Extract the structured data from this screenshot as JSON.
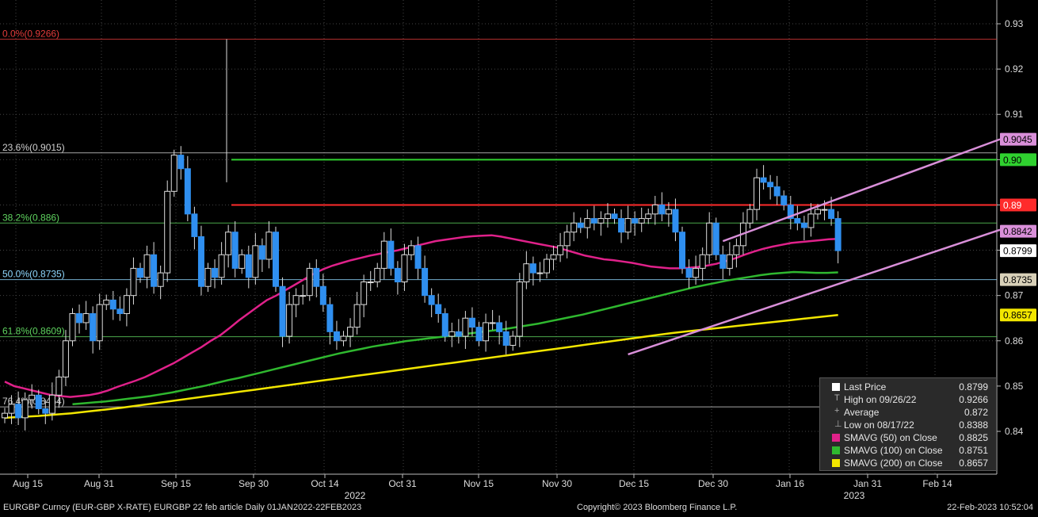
{
  "chart_data": {
    "type": "candlestick",
    "title": "",
    "y_range": [
      0.835,
      0.935
    ],
    "y_ticks": [
      "0.93",
      "0.92",
      "0.91",
      "0.90",
      "0.89",
      "0.88",
      "0.87",
      "0.86",
      "0.85",
      "0.84"
    ],
    "x_tick_labels": [
      "Aug 15",
      "Aug 31",
      "Sep 15",
      "Sep 30",
      "Oct 14",
      "Oct 31",
      "Nov 15",
      "Nov 30",
      "Dec 15",
      "Dec 30",
      "Jan 16",
      "Jan 31",
      "Feb 14"
    ],
    "year_labels": [
      "2022",
      "2023"
    ],
    "fib_levels": [
      {
        "label": "0.0%(0.9266)",
        "value": 0.9266,
        "color": "#e23b3b"
      },
      {
        "label": "23.6%(0.9015)",
        "value": 0.9015,
        "color": "#cfcfcf"
      },
      {
        "label": "38.2%(0.886)",
        "value": 0.886,
        "color": "#5fd35f"
      },
      {
        "label": "50.0%(0.8735)",
        "value": 0.8735,
        "color": "#8fd8ff"
      },
      {
        "label": "61.8%(0.8609)",
        "value": 0.8609,
        "color": "#5fd35f"
      },
      {
        "label": "76.4%(0.8454)",
        "value": 0.8454,
        "color": "#cfcfcf"
      }
    ],
    "horizontal_lines": [
      {
        "label": "0.90",
        "value": 0.9,
        "color": "#2fd12f"
      },
      {
        "label": "0.89",
        "value": 0.89,
        "color": "#ff2b2b"
      }
    ],
    "price_tags": [
      {
        "label": "0.9045",
        "value": 0.9045,
        "bg": "#d98fd9",
        "fg": "#000"
      },
      {
        "label": "0.90",
        "value": 0.9,
        "bg": "#2fd12f",
        "fg": "#000"
      },
      {
        "label": "0.89",
        "value": 0.89,
        "bg": "#ff2b2b",
        "fg": "#fff"
      },
      {
        "label": "0.8842",
        "value": 0.8842,
        "bg": "#d98fd9",
        "fg": "#000"
      },
      {
        "label": "0.8799",
        "value": 0.8799,
        "bg": "#ffffff",
        "fg": "#000"
      },
      {
        "label": "0.8735",
        "value": 0.8735,
        "bg": "#d8d0b8",
        "fg": "#000"
      },
      {
        "label": "0.8657",
        "value": 0.8657,
        "bg": "#f2e600",
        "fg": "#000"
      }
    ],
    "close_series": [
      0.844,
      0.846,
      0.843,
      0.847,
      0.848,
      0.845,
      0.844,
      0.848,
      0.852,
      0.86,
      0.866,
      0.864,
      0.866,
      0.86,
      0.868,
      0.869,
      0.867,
      0.866,
      0.87,
      0.876,
      0.874,
      0.879,
      0.872,
      0.875,
      0.893,
      0.901,
      0.898,
      0.888,
      0.883,
      0.872,
      0.876,
      0.874,
      0.879,
      0.884,
      0.876,
      0.879,
      0.874,
      0.881,
      0.878,
      0.884,
      0.872,
      0.861,
      0.868,
      0.87,
      0.87,
      0.876,
      0.872,
      0.868,
      0.862,
      0.86,
      0.861,
      0.863,
      0.868,
      0.873,
      0.873,
      0.876,
      0.882,
      0.876,
      0.873,
      0.879,
      0.881,
      0.876,
      0.87,
      0.868,
      0.866,
      0.861,
      0.862,
      0.861,
      0.865,
      0.863,
      0.86,
      0.864,
      0.864,
      0.862,
      0.859,
      0.861,
      0.873,
      0.877,
      0.875,
      0.875,
      0.878,
      0.879,
      0.881,
      0.884,
      0.886,
      0.885,
      0.887,
      0.886,
      0.887,
      0.888,
      0.887,
      0.884,
      0.887,
      0.886,
      0.887,
      0.888,
      0.89,
      0.888,
      0.889,
      0.884,
      0.876,
      0.874,
      0.876,
      0.879,
      0.886,
      0.879,
      0.876,
      0.879,
      0.881,
      0.886,
      0.889,
      0.896,
      0.895,
      0.894,
      0.892,
      0.89,
      0.887,
      0.886,
      0.885,
      0.888,
      0.889,
      0.889,
      0.887,
      0.8799
    ],
    "sma50": [
      0.851,
      0.85,
      0.8495,
      0.849,
      0.8485,
      0.848,
      0.8478,
      0.8476,
      0.8478,
      0.848,
      0.8484,
      0.849,
      0.8498,
      0.8505,
      0.8512,
      0.852,
      0.853,
      0.854,
      0.855,
      0.8562,
      0.8574,
      0.8586,
      0.86,
      0.8612,
      0.8628,
      0.8645,
      0.866,
      0.8675,
      0.869,
      0.87,
      0.8712,
      0.8724,
      0.8736,
      0.8748,
      0.8758,
      0.8766,
      0.8772,
      0.8778,
      0.8783,
      0.8788,
      0.8792,
      0.8796,
      0.88,
      0.8805,
      0.881,
      0.8815,
      0.882,
      0.8823,
      0.8826,
      0.8829,
      0.8831,
      0.8832,
      0.8833,
      0.883,
      0.8826,
      0.8822,
      0.8818,
      0.8814,
      0.881,
      0.8806,
      0.88,
      0.8794,
      0.8788,
      0.8784,
      0.878,
      0.8778,
      0.8775,
      0.8772,
      0.8768,
      0.8764,
      0.8762,
      0.876,
      0.876,
      0.8761,
      0.8763,
      0.8766,
      0.877,
      0.8776,
      0.8782,
      0.879,
      0.8797,
      0.8803,
      0.8808,
      0.8812,
      0.8816,
      0.8818,
      0.882,
      0.8822,
      0.8824,
      0.8825
    ],
    "sma100": [
      0.846,
      0.8462,
      0.8464,
      0.8466,
      0.8469,
      0.8472,
      0.8475,
      0.8478,
      0.8482,
      0.8486,
      0.8491,
      0.8496,
      0.8501,
      0.8507,
      0.8513,
      0.8518,
      0.8524,
      0.853,
      0.8536,
      0.8542,
      0.8548,
      0.8554,
      0.856,
      0.8566,
      0.8572,
      0.8577,
      0.8582,
      0.8587,
      0.8591,
      0.8595,
      0.8599,
      0.8602,
      0.8605,
      0.8608,
      0.8611,
      0.8614,
      0.8617,
      0.862,
      0.8623,
      0.8626,
      0.863,
      0.8634,
      0.8638,
      0.8643,
      0.8648,
      0.8653,
      0.8658,
      0.8664,
      0.867,
      0.8676,
      0.8682,
      0.8688,
      0.8694,
      0.87,
      0.8706,
      0.8712,
      0.8718,
      0.8723,
      0.8728,
      0.8733,
      0.8737,
      0.8741,
      0.8745,
      0.8748,
      0.875,
      0.8752,
      0.8751,
      0.875,
      0.875,
      0.8751
    ],
    "sma200": [
      0.843,
      0.8432,
      0.8434,
      0.8437,
      0.844,
      0.8444,
      0.8448,
      0.8452,
      0.8457,
      0.8462,
      0.8467,
      0.8472,
      0.8477,
      0.8482,
      0.8487,
      0.8492,
      0.8497,
      0.8502,
      0.8507,
      0.8512,
      0.8517,
      0.8522,
      0.8527,
      0.8532,
      0.8537,
      0.8542,
      0.8547,
      0.8552,
      0.8557,
      0.8562,
      0.8567,
      0.8572,
      0.8577,
      0.8582,
      0.8587,
      0.8592,
      0.8597,
      0.8602,
      0.8607,
      0.8612,
      0.8617,
      0.8621,
      0.8625,
      0.8629,
      0.8633,
      0.8637,
      0.8641,
      0.8645,
      0.8649,
      0.8653,
      0.8657
    ],
    "channel": [
      {
        "from": {
          "i": 92,
          "v": 0.857
        },
        "to": {
          "i": 147,
          "v": 0.8845
        }
      },
      {
        "from": {
          "i": 106,
          "v": 0.882
        },
        "to": {
          "i": 147,
          "v": 0.9045
        }
      }
    ]
  },
  "legend": [
    {
      "marker": "square",
      "color": "#ffffff",
      "label": "Last Price",
      "value": "0.8799"
    },
    {
      "marker": "T",
      "color": "#aaaaaa",
      "label": "High on 09/26/22",
      "value": "0.9266"
    },
    {
      "marker": "+",
      "color": "#aaaaaa",
      "label": "Average",
      "value": "0.872"
    },
    {
      "marker": "⊥",
      "color": "#aaaaaa",
      "label": "Low on 08/17/22",
      "value": "0.8388"
    },
    {
      "marker": "square",
      "color": "#e0218a",
      "label": "SMAVG (50)  on Close",
      "value": "0.8825"
    },
    {
      "marker": "square",
      "color": "#2fb82f",
      "label": "SMAVG (100)  on Close",
      "value": "0.8751"
    },
    {
      "marker": "square",
      "color": "#f2e600",
      "label": "SMAVG (200)  on Close",
      "value": "0.8657"
    }
  ],
  "footer": {
    "left": "EURGBP Curncy (EUR-GBP X-RATE) EURGBP 22 feb article  Daily 01JAN2022-22FEB2023",
    "center": "Copyright© 2023 Bloomberg Finance L.P.",
    "right": "22-Feb-2023 10:52:04"
  }
}
